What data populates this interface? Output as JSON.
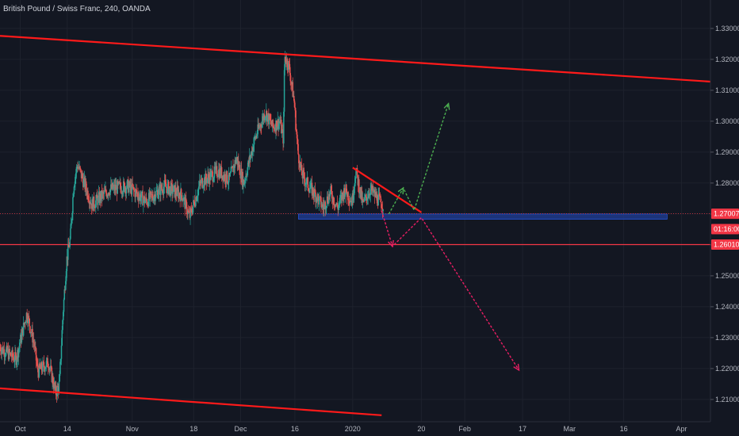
{
  "chart_data": {
    "type": "candlestick",
    "title": "British Pound / Swiss Franc, 240, OANDA",
    "y_axis": {
      "ticks": [
        1.21,
        1.22,
        1.23,
        1.24,
        1.25,
        1.26,
        1.27,
        1.28,
        1.29,
        1.3,
        1.31,
        1.32,
        1.33
      ],
      "tick_labels": [
        "1.21000",
        "1.22000",
        "1.23000",
        "1.24000",
        "1.25000",
        "1.26000",
        "1.27000",
        "1.28000",
        "1.29000",
        "1.30000",
        "1.31000",
        "1.32000",
        "1.33000"
      ],
      "range": [
        1.2028,
        1.3392
      ]
    },
    "x_axis": {
      "ticks": [
        {
          "label": "Oct",
          "day": 0
        },
        {
          "label": "14",
          "day": 13
        },
        {
          "label": "Nov",
          "day": 31
        },
        {
          "label": "18",
          "day": 48
        },
        {
          "label": "Dec",
          "day": 61
        },
        {
          "label": "16",
          "day": 76
        },
        {
          "label": "2020",
          "day": 92
        },
        {
          "label": "20",
          "day": 111
        },
        {
          "label": "Feb",
          "day": 123
        },
        {
          "label": "17",
          "day": 139
        },
        {
          "label": "Mar",
          "day": 152
        },
        {
          "label": "16",
          "day": 167
        },
        {
          "label": "Apr",
          "day": 183
        }
      ],
      "range_days": [
        -5.6,
        191
      ]
    },
    "price_labels": [
      {
        "value": 1.27007,
        "text": "1.27007",
        "color": "#f23645"
      },
      {
        "value": 1.2651,
        "text": "01:16:00",
        "color": "#f23645"
      },
      {
        "value": 1.2601,
        "text": "1.26010",
        "color": "#f23645"
      }
    ],
    "horizontal_lines": [
      {
        "name": "current-price-line",
        "value": 1.27007,
        "color": "#f23645",
        "style": "dotted"
      },
      {
        "name": "support-line",
        "value": 1.2601,
        "color": "#f23645",
        "style": "solid"
      }
    ],
    "zone": {
      "name": "demand-zone",
      "day_start": 77,
      "day_end": 179,
      "top": 1.27,
      "bottom": 1.2683,
      "color": "#1e3a8a"
    },
    "trendlines": [
      {
        "name": "upper-channel-line",
        "color": "#ff1a1a",
        "points": [
          [
            -5.6,
            1.3276
          ],
          [
            191,
            1.3128
          ]
        ]
      },
      {
        "name": "lower-channel-line",
        "color": "#ff1a1a",
        "points": [
          [
            -5.6,
            1.2136
          ],
          [
            100,
            1.2049
          ]
        ]
      },
      {
        "name": "descending-trendline",
        "color": "#ff1a1a",
        "points": [
          [
            92,
            1.285
          ],
          [
            111,
            1.2705
          ]
        ]
      }
    ],
    "arrows": [
      {
        "name": "bullish-arrow",
        "color": "#4caf50",
        "points": [
          [
            102,
            1.27
          ],
          [
            106,
            1.2784
          ],
          [
            109,
            1.2712
          ],
          [
            118.5,
            1.3057
          ]
        ]
      },
      {
        "name": "bearish-arrow",
        "color": "#e91e63",
        "points": [
          [
            100,
            1.271
          ],
          [
            103,
            1.2595
          ],
          [
            111,
            1.2688
          ],
          [
            138,
            1.2195
          ]
        ]
      }
    ],
    "candles_seed": {
      "anchors": [
        [
          -5.6,
          1.227
        ],
        [
          -1,
          1.223
        ],
        [
          2,
          1.238
        ],
        [
          4,
          1.228
        ],
        [
          5,
          1.219
        ],
        [
          8,
          1.222
        ],
        [
          10,
          1.212
        ],
        [
          11,
          1.215
        ],
        [
          12,
          1.238
        ],
        [
          13,
          1.255
        ],
        [
          14,
          1.262
        ],
        [
          15,
          1.28
        ],
        [
          16,
          1.286
        ],
        [
          20,
          1.273
        ],
        [
          25,
          1.278
        ],
        [
          30,
          1.279
        ],
        [
          35,
          1.274
        ],
        [
          40,
          1.279
        ],
        [
          45,
          1.276
        ],
        [
          47,
          1.269
        ],
        [
          50,
          1.28
        ],
        [
          55,
          1.284
        ],
        [
          58,
          1.281
        ],
        [
          60,
          1.288
        ],
        [
          62,
          1.28
        ],
        [
          65,
          1.294
        ],
        [
          68,
          1.303
        ],
        [
          70,
          1.298
        ],
        [
          72,
          1.3
        ],
        [
          73,
          1.294
        ],
        [
          73.3,
          1.321
        ],
        [
          74.5,
          1.318
        ],
        [
          76,
          1.306
        ],
        [
          77,
          1.29
        ],
        [
          78,
          1.283
        ],
        [
          80,
          1.279
        ],
        [
          82,
          1.276
        ],
        [
          84,
          1.272
        ],
        [
          86,
          1.277
        ],
        [
          88,
          1.272
        ],
        [
          90,
          1.278
        ],
        [
          92,
          1.274
        ],
        [
          93,
          1.284
        ],
        [
          95,
          1.273
        ],
        [
          97,
          1.278
        ],
        [
          99,
          1.275
        ],
        [
          100.5,
          1.273
        ]
      ],
      "last_day": 100.5,
      "start_day": -5.6,
      "step_days": 0.1667
    }
  }
}
